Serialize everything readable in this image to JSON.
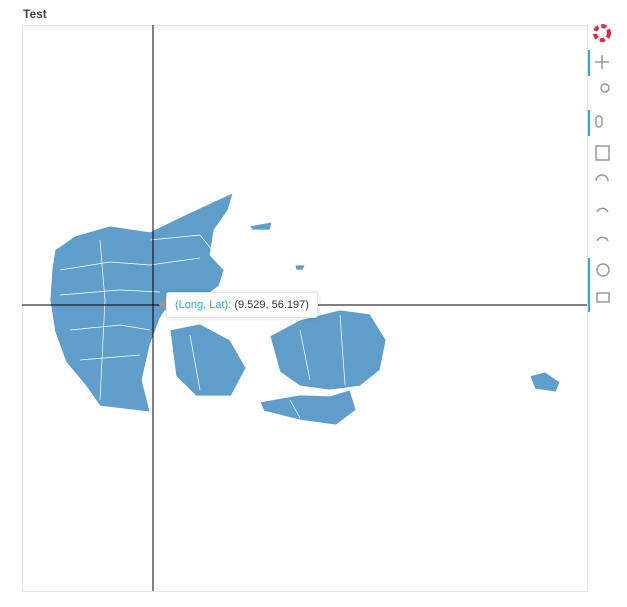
{
  "title": "Test",
  "tooltip": {
    "label": "(Long, Lat):",
    "value": "(9.529, 56.197)"
  }
}
